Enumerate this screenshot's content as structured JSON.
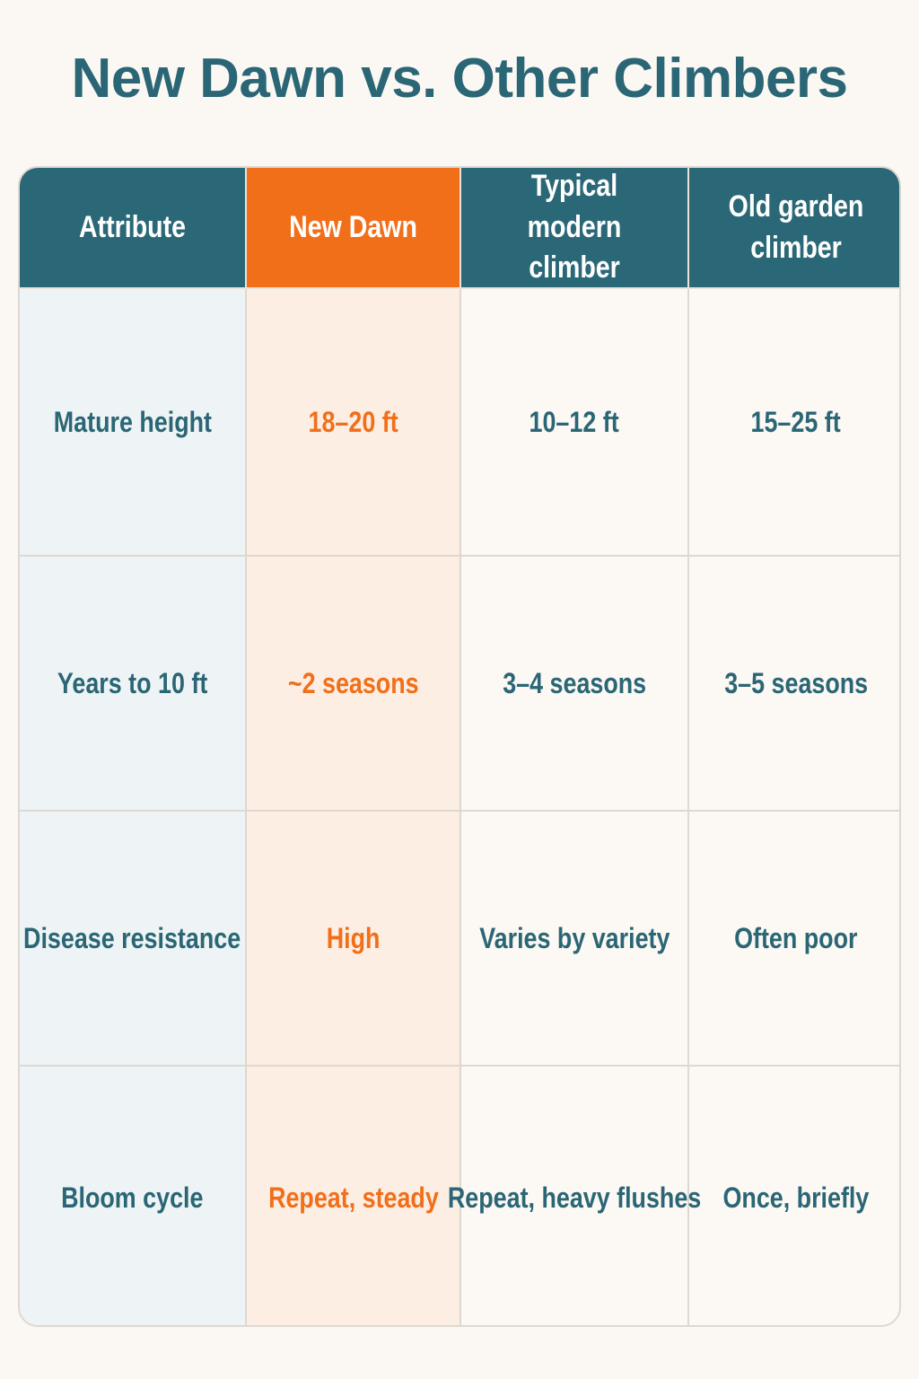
{
  "title": "New Dawn vs. Other Climbers",
  "table": {
    "headers": [
      "Attribute",
      "New Dawn",
      "Typical modern climber",
      "Old garden climber"
    ],
    "rows": [
      [
        "Mature height",
        "18–20 ft",
        "10–12 ft",
        "15–25 ft"
      ],
      [
        "Years to 10 ft",
        "~2 seasons",
        "3–4 seasons",
        "3–5 seasons"
      ],
      [
        "Disease resistance",
        "High",
        "Varies by variety",
        "Often poor"
      ],
      [
        "Bloom cycle",
        "Repeat, steady",
        "Repeat, heavy flushes",
        "Once, briefly"
      ]
    ]
  }
}
